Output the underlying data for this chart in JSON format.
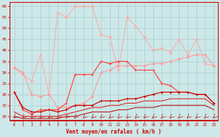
{
  "x": [
    0,
    1,
    2,
    3,
    4,
    5,
    6,
    7,
    8,
    9,
    10,
    11,
    12,
    13,
    14,
    15,
    16,
    17,
    18,
    19,
    20,
    21,
    22,
    23
  ],
  "line_rafales_light": [
    32,
    29,
    26,
    38,
    20,
    57,
    55,
    60,
    60,
    60,
    47,
    46,
    31,
    55,
    51,
    46,
    40,
    41,
    39,
    45,
    38,
    45,
    34,
    33
  ],
  "line_moy_light": [
    32,
    30,
    20,
    19,
    20,
    14,
    14,
    15,
    16,
    19,
    30,
    31,
    33,
    33,
    33,
    33,
    34,
    34,
    35,
    36,
    37,
    38,
    38,
    33
  ],
  "line_rafales_dark": [
    21,
    13,
    11,
    13,
    13,
    13,
    16,
    29,
    29,
    29,
    35,
    34,
    35,
    35,
    31,
    31,
    31,
    25,
    24,
    21,
    21,
    20,
    20,
    16
  ],
  "line_moy_dark1": [
    21,
    14,
    12,
    12,
    13,
    12,
    13,
    15,
    15,
    15,
    17,
    17,
    17,
    18,
    18,
    19,
    20,
    21,
    21,
    21,
    21,
    20,
    20,
    16
  ],
  "line_moy_dark2": [
    12,
    10,
    10,
    10,
    10,
    10,
    11,
    12,
    13,
    14,
    14,
    15,
    15,
    16,
    16,
    17,
    17,
    17,
    18,
    18,
    18,
    18,
    18,
    15
  ],
  "line_moy_dark3": [
    10,
    9,
    9,
    9,
    9,
    9,
    10,
    10,
    11,
    12,
    12,
    12,
    13,
    13,
    14,
    14,
    14,
    15,
    15,
    15,
    15,
    15,
    15,
    13
  ],
  "bg_color": "#cce8e8",
  "grid_color": "#aacccc",
  "color_light_pink": "#ffaaaa",
  "color_mid_pink": "#ff9999",
  "color_dark_red": "#cc0000",
  "color_mid_red": "#ff4444",
  "color_light_red": "#ff8888",
  "xlabel": "Vent moyen/en rafales ( km/h )",
  "ylim": [
    8,
    62
  ],
  "yticks": [
    10,
    15,
    20,
    25,
    30,
    35,
    40,
    45,
    50,
    55,
    60
  ]
}
